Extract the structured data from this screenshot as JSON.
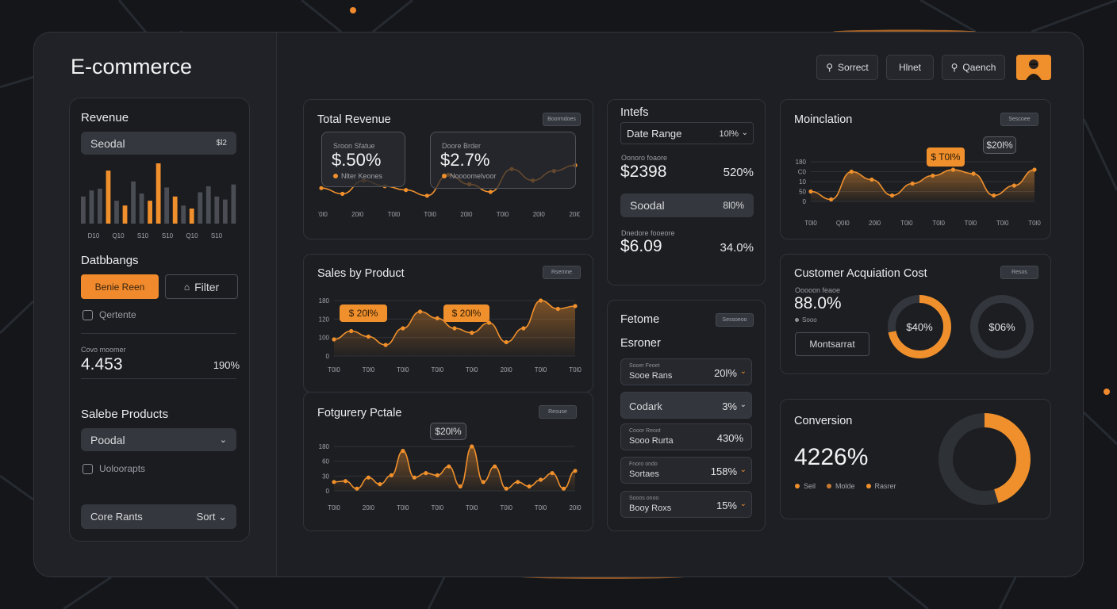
{
  "app": {
    "title": "E-commerce"
  },
  "header": {
    "buttons": [
      {
        "label": "Sorrect",
        "icon": "search-icon"
      },
      {
        "label": "Hlnet"
      },
      {
        "label": "Qaench",
        "icon": "search-icon"
      }
    ],
    "avatar": "user-avatar"
  },
  "sidebar": {
    "revenue_title": "Revenue",
    "revenue_select": {
      "label": "Sеodal",
      "value": "$l2"
    },
    "bar_axis": [
      "D10",
      "Q10",
      "S10",
      "S10",
      "Q10",
      "S10"
    ],
    "bars": [
      {
        "v": 0.45,
        "o": false
      },
      {
        "v": 0.55,
        "o": false
      },
      {
        "v": 0.58,
        "o": false
      },
      {
        "v": 0.88,
        "o": true
      },
      {
        "v": 0.38,
        "o": false
      },
      {
        "v": 0.3,
        "o": true
      },
      {
        "v": 0.7,
        "o": false
      },
      {
        "v": 0.5,
        "o": false
      },
      {
        "v": 0.38,
        "o": true
      },
      {
        "v": 1.0,
        "o": true
      },
      {
        "v": 0.6,
        "o": false
      },
      {
        "v": 0.45,
        "o": true
      },
      {
        "v": 0.3,
        "o": false
      },
      {
        "v": 0.25,
        "o": true
      },
      {
        "v": 0.52,
        "o": false
      },
      {
        "v": 0.62,
        "o": false
      },
      {
        "v": 0.45,
        "o": false
      },
      {
        "v": 0.4,
        "o": false
      },
      {
        "v": 0.65,
        "o": false
      }
    ],
    "databangs_title": "Datbbangs",
    "primary_button": "Benie Reen",
    "filter_button": "Filter",
    "checkbox1": "Qertente",
    "stat_caption": "Covo moomer",
    "stat_value": "4.453",
    "stat_pct": "190%",
    "products_title": "Salebe Products",
    "products_select": "Poodal",
    "checkbox2": "Uoloorapts",
    "footer_label": "Core Rants",
    "footer_sort": "Sort"
  },
  "total_revenue": {
    "title": "Total Revenue",
    "chip": "Boormdoes",
    "box1": {
      "caption": "Sroon Sfatue",
      "value": "$.50%",
      "legend": "Nlter Keones"
    },
    "box2": {
      "caption": "Doore Brder",
      "value": "$2.7%",
      "legend": "Noooomelvoor"
    },
    "x_ticks": [
      "T0l0",
      "20l0",
      "T0l0",
      "T0l0",
      "20l0",
      "T0l0",
      "20l0",
      "20l0"
    ],
    "series": [
      0.35,
      0.2,
      0.55,
      0.4,
      0.3,
      0.15,
      0.7,
      0.45,
      0.25,
      0.85,
      0.55,
      0.8,
      0.95
    ]
  },
  "sales_by_product": {
    "title": "Sales by Product",
    "chip": "Rsemne",
    "bubble1": "$ 20l%",
    "bubble2": "$ 20l%",
    "y_ticks": [
      "180",
      "120",
      "100",
      "0"
    ],
    "x_ticks": [
      "T0l0",
      "T0l0",
      "T0l0",
      "T0l0",
      "T0l0",
      "20l0",
      "T0l0",
      "T0l0"
    ],
    "series": [
      0.3,
      0.45,
      0.35,
      0.2,
      0.5,
      0.8,
      0.68,
      0.5,
      0.42,
      0.6,
      0.25,
      0.5,
      1.0,
      0.85,
      0.9
    ]
  },
  "category_profile": {
    "title": "Fotgurery Pctale",
    "chip": "Resuse",
    "bubble": "$20l%",
    "y_ticks": [
      "180",
      "60",
      "30",
      "0"
    ],
    "x_ticks": [
      "T0l0",
      "20l0",
      "T0l0",
      "T0l0",
      "T0l0",
      "T0l0",
      "T0l0",
      "20l0"
    ],
    "series": [
      0.2,
      0.22,
      0.05,
      0.3,
      0.15,
      0.35,
      0.9,
      0.3,
      0.4,
      0.35,
      0.55,
      0.1,
      1.0,
      0.2,
      0.55,
      0.05,
      0.2,
      0.1,
      0.25,
      0.4,
      0.05,
      0.45
    ]
  },
  "intents": {
    "title": "Intefs",
    "date_range_label": "Date Range",
    "date_range_value": "10l%",
    "cap1": "Oonoro foaore",
    "value1": "$2398",
    "pct1": "520%",
    "select_label": "Soodal",
    "select_value": "8l0%",
    "cap2": "Dnedore fooeore",
    "value2": "$6.09",
    "pct2": "34.0%"
  },
  "feature": {
    "title": "Fetome",
    "subtitle": "Esroner",
    "chip": "Sessoeoo",
    "rows": [
      {
        "small": "Sooer Feoet",
        "name": "Sooe Rans",
        "pct": "20l%",
        "chev": true,
        "style": "normal"
      },
      {
        "small": "",
        "name": "Codark",
        "pct": "3%",
        "chev": true,
        "style": "plain"
      },
      {
        "small": "Cooor Reoot",
        "name": "Sooo Rurta",
        "pct": "430%",
        "chev": false,
        "style": "normal"
      },
      {
        "small": "Fnoro ondo",
        "name": "Sortaes",
        "pct": "158%",
        "chev": true,
        "style": "normal"
      },
      {
        "small": "Sooos onoo",
        "name": "Booy Roxs",
        "pct": "15%",
        "chev": true,
        "style": "normal"
      }
    ]
  },
  "modulation": {
    "title": "Moinclation",
    "chip": "Sescoee",
    "bubble1": "$ T0l%",
    "bubble2": "$20l%",
    "y_ticks": [
      "180",
      "C0",
      "10",
      "50",
      "0"
    ],
    "x_ticks": [
      "T0l0",
      "Q0l0",
      "20l0",
      "T0l0",
      "T0l0",
      "T0l0",
      "T0l0",
      "T0l0"
    ],
    "series": [
      0.25,
      0.05,
      0.75,
      0.55,
      0.15,
      0.45,
      0.65,
      0.8,
      0.7,
      0.15,
      0.4,
      0.8
    ]
  },
  "cac": {
    "title": "Customer Acquiation Cost",
    "chip": "Resos",
    "caption": "Ooooon feaoe",
    "value": "88.0%",
    "legend": "Sooo",
    "button": "Montsarrat",
    "donut1": {
      "label": "$40%",
      "fraction": 0.72,
      "color": "#f0902c"
    },
    "donut2": {
      "label": "$06%",
      "fraction": 0.0,
      "color": "#f0902c"
    }
  },
  "conversion": {
    "title": "Conversion",
    "value": "4226%",
    "legend": [
      {
        "label": "Seil",
        "color": "#f0902c"
      },
      {
        "label": "Molde",
        "color": "#c87a30"
      },
      {
        "label": "Rasrer",
        "color": "#f0902c"
      }
    ],
    "donut_fraction": 0.45,
    "accent": "#f0902c"
  },
  "colors": {
    "accent": "#f0902c",
    "panel": "#1c1e22"
  }
}
